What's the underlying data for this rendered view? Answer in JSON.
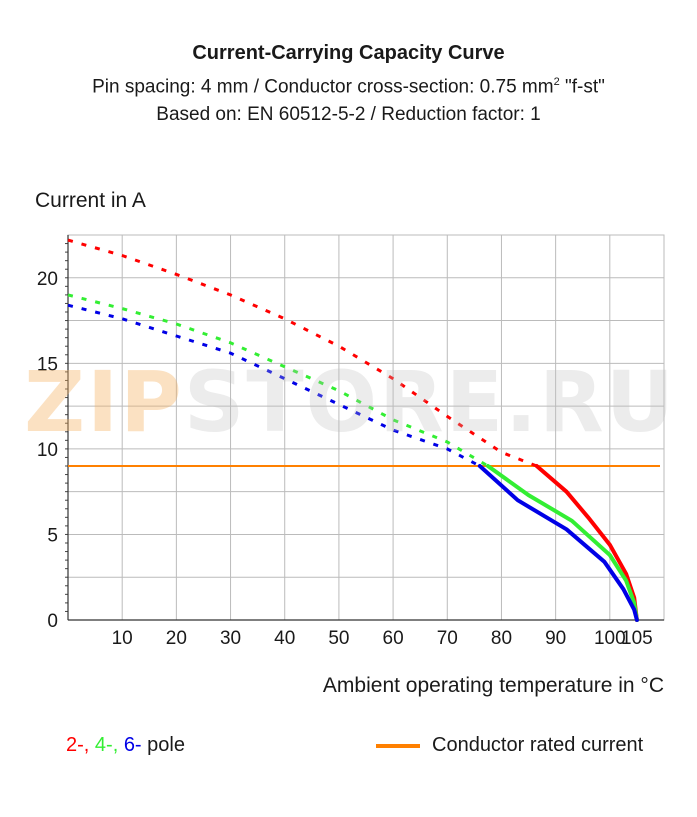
{
  "chart_data": {
    "type": "line",
    "title": "Current-Carrying Capacity Curve",
    "subtitle_line1_prefix": "Pin spacing: 4 mm / Conductor cross-section: 0.75 mm",
    "subtitle_line1_sup": "2",
    "subtitle_line1_suffix": " \"f-st\"",
    "subtitle_line2": "Based on: EN 60512-5-2 / Reduction factor: 1",
    "ylabel": "Current in A",
    "xlabel": "Ambient operating temperature in °C",
    "xlim": [
      0,
      110
    ],
    "ylim": [
      0,
      22.5
    ],
    "x_ticks": [
      10,
      20,
      30,
      40,
      50,
      60,
      70,
      80,
      90,
      100,
      105
    ],
    "y_ticks": [
      0,
      5,
      10,
      15,
      20
    ],
    "grid": true,
    "series": [
      {
        "pole": "2-",
        "color": "#ff0000",
        "dotted": [
          [
            0,
            22.2
          ],
          [
            10,
            21.3
          ],
          [
            20,
            20.2
          ],
          [
            30,
            19.0
          ],
          [
            40,
            17.6
          ],
          [
            50,
            16.0
          ],
          [
            60,
            14.1
          ],
          [
            70,
            11.9
          ],
          [
            80,
            9.8
          ],
          [
            86.5,
            9.0
          ]
        ],
        "solid": [
          [
            86.5,
            9.0
          ],
          [
            92,
            7.5
          ],
          [
            96,
            6.0
          ],
          [
            100,
            4.4
          ],
          [
            103,
            2.7
          ],
          [
            104.5,
            1.3
          ],
          [
            105,
            0
          ]
        ]
      },
      {
        "pole": "4-",
        "color": "#33ee33",
        "dotted": [
          [
            0,
            19.0
          ],
          [
            10,
            18.2
          ],
          [
            20,
            17.3
          ],
          [
            30,
            16.2
          ],
          [
            40,
            14.8
          ],
          [
            50,
            13.4
          ],
          [
            60,
            11.7
          ],
          [
            70,
            10.4
          ],
          [
            77.5,
            9.0
          ]
        ],
        "solid": [
          [
            77.5,
            9.0
          ],
          [
            85,
            7.3
          ],
          [
            93,
            5.8
          ],
          [
            100,
            3.8
          ],
          [
            103,
            2.3
          ],
          [
            104.5,
            1.0
          ],
          [
            105,
            0
          ]
        ]
      },
      {
        "pole": "6-",
        "color": "#0000e6",
        "dotted": [
          [
            0,
            18.4
          ],
          [
            10,
            17.6
          ],
          [
            20,
            16.6
          ],
          [
            30,
            15.6
          ],
          [
            40,
            14.1
          ],
          [
            50,
            12.6
          ],
          [
            60,
            11.1
          ],
          [
            70,
            10.0
          ],
          [
            76,
            9.0
          ]
        ],
        "solid": [
          [
            76,
            9.0
          ],
          [
            83,
            7.0
          ],
          [
            92,
            5.3
          ],
          [
            99,
            3.4
          ],
          [
            102.5,
            1.8
          ],
          [
            104.5,
            0.6
          ],
          [
            105,
            0
          ]
        ]
      }
    ],
    "rated_current": {
      "value": 9.0,
      "color": "#ff8000",
      "label": "Conductor rated current"
    }
  },
  "legend": {
    "pole_items": [
      {
        "text": "2-,",
        "color": "#ff0000"
      },
      {
        "text": "4-,",
        "color": "#33ee33"
      },
      {
        "text": "6-",
        "color": "#0000e6"
      }
    ],
    "pole_suffix": " pole",
    "rated_label": "Conductor rated current"
  },
  "watermark": {
    "part1": "ZIP",
    "part2": "STORE.RU"
  }
}
